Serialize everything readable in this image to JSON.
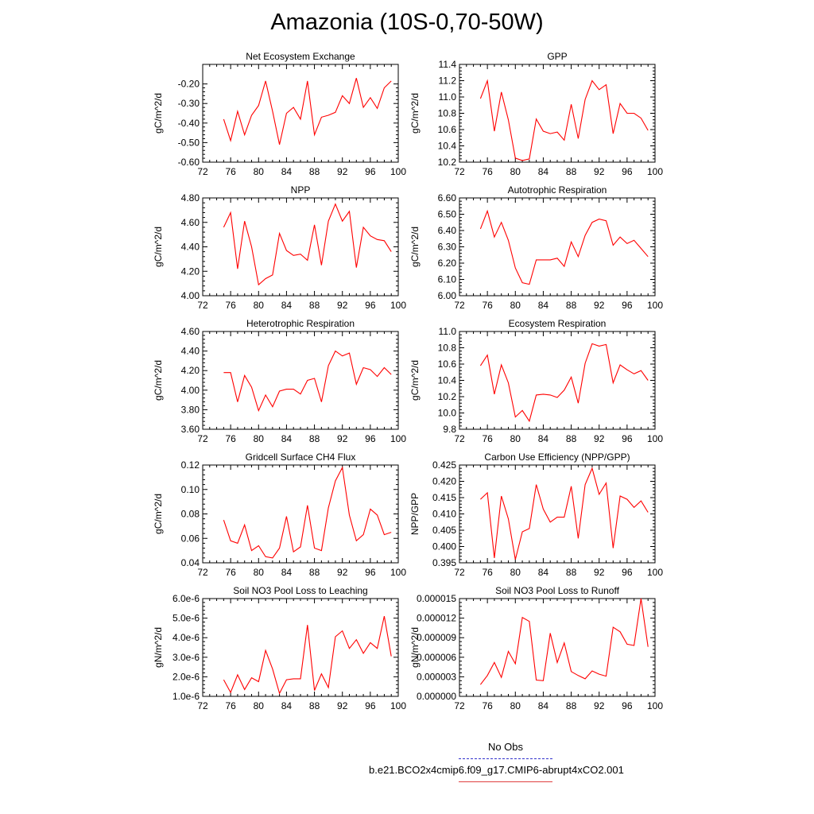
{
  "title": "Amazonia (10S-0,70-50W)",
  "legend": [
    {
      "name": "No Obs",
      "color": "#3333cc",
      "style": "dashed"
    },
    {
      "name": "b.e21.BCO2x4cmip6.f09_g17.CMIP6-abrupt4xCO2.001",
      "color": "#e04040",
      "style": "solid"
    }
  ],
  "chart_data": [
    {
      "type": "line",
      "title": "Net Ecosystem Exchange",
      "ylabel": "gC/m^2/d",
      "xlim": [
        72,
        100
      ],
      "xticks": [
        72,
        76,
        80,
        84,
        88,
        92,
        96,
        100
      ],
      "ylim": [
        -0.6,
        -0.1
      ],
      "yticks": [
        -0.6,
        -0.5,
        -0.4,
        -0.3,
        -0.2
      ],
      "ytick_labels": [
        "-0.60",
        "-0.50",
        "-0.40",
        "-0.30",
        "-0.20"
      ],
      "series": [
        {
          "color": "#ff0000",
          "x": [
            75,
            76,
            77,
            78,
            79,
            80,
            81,
            82,
            83,
            84,
            85,
            86,
            87,
            88,
            89,
            90,
            91,
            92,
            93,
            94,
            95,
            96,
            97,
            98,
            99
          ],
          "y": [
            -0.38,
            -0.49,
            -0.34,
            -0.46,
            -0.36,
            -0.31,
            -0.185,
            -0.34,
            -0.51,
            -0.35,
            -0.32,
            -0.38,
            -0.185,
            -0.46,
            -0.37,
            -0.36,
            -0.345,
            -0.26,
            -0.3,
            -0.17,
            -0.32,
            -0.27,
            -0.325,
            -0.22,
            -0.185
          ]
        }
      ]
    },
    {
      "type": "line",
      "title": "GPP",
      "ylabel": "gC/m^2/d",
      "xlim": [
        72,
        100
      ],
      "xticks": [
        72,
        76,
        80,
        84,
        88,
        92,
        96,
        100
      ],
      "ylim": [
        10.2,
        11.4
      ],
      "yticks": [
        10.2,
        10.4,
        10.6,
        10.8,
        11.0,
        11.2,
        11.4
      ],
      "ytick_labels": [
        "10.2",
        "10.4",
        "10.6",
        "10.8",
        "11.0",
        "11.2",
        "11.4"
      ],
      "series": [
        {
          "color": "#ff0000",
          "x": [
            75,
            76,
            77,
            78,
            79,
            80,
            81,
            82,
            83,
            84,
            85,
            86,
            87,
            88,
            89,
            90,
            91,
            92,
            93,
            94,
            95,
            96,
            97,
            98,
            99
          ],
          "y": [
            10.98,
            11.2,
            10.58,
            11.06,
            10.72,
            10.25,
            10.22,
            10.24,
            10.73,
            10.58,
            10.55,
            10.57,
            10.47,
            10.91,
            10.49,
            10.97,
            11.2,
            11.09,
            11.15,
            10.55,
            10.92,
            10.8,
            10.8,
            10.74,
            10.59
          ]
        }
      ]
    },
    {
      "type": "line",
      "title": "NPP",
      "ylabel": "gC/m^2/d",
      "xlim": [
        72,
        100
      ],
      "xticks": [
        72,
        76,
        80,
        84,
        88,
        92,
        96,
        100
      ],
      "ylim": [
        4.0,
        4.8
      ],
      "yticks": [
        4.0,
        4.2,
        4.4,
        4.6,
        4.8
      ],
      "ytick_labels": [
        "4.00",
        "4.20",
        "4.40",
        "4.60",
        "4.80"
      ],
      "series": [
        {
          "color": "#ff0000",
          "x": [
            75,
            76,
            77,
            78,
            79,
            80,
            81,
            82,
            83,
            84,
            85,
            86,
            87,
            88,
            89,
            90,
            91,
            92,
            93,
            94,
            95,
            96,
            97,
            98,
            99
          ],
          "y": [
            4.56,
            4.68,
            4.22,
            4.61,
            4.4,
            4.09,
            4.14,
            4.17,
            4.51,
            4.37,
            4.33,
            4.34,
            4.29,
            4.58,
            4.25,
            4.61,
            4.75,
            4.61,
            4.69,
            4.23,
            4.56,
            4.49,
            4.46,
            4.45,
            4.36
          ]
        }
      ]
    },
    {
      "type": "line",
      "title": "Autotrophic Respiration",
      "ylabel": "gC/m^2/d",
      "xlim": [
        72,
        100
      ],
      "xticks": [
        72,
        76,
        80,
        84,
        88,
        92,
        96,
        100
      ],
      "ylim": [
        6.0,
        6.6
      ],
      "yticks": [
        6.0,
        6.1,
        6.2,
        6.3,
        6.4,
        6.5,
        6.6
      ],
      "ytick_labels": [
        "6.00",
        "6.10",
        "6.20",
        "6.30",
        "6.40",
        "6.50",
        "6.60"
      ],
      "series": [
        {
          "color": "#ff0000",
          "x": [
            75,
            76,
            77,
            78,
            79,
            80,
            81,
            82,
            83,
            84,
            85,
            86,
            87,
            88,
            89,
            90,
            91,
            92,
            93,
            94,
            95,
            96,
            97,
            98,
            99
          ],
          "y": [
            6.41,
            6.52,
            6.36,
            6.45,
            6.34,
            6.17,
            6.08,
            6.07,
            6.22,
            6.22,
            6.22,
            6.23,
            6.18,
            6.33,
            6.24,
            6.37,
            6.45,
            6.47,
            6.46,
            6.31,
            6.36,
            6.32,
            6.34,
            6.29,
            6.24
          ]
        }
      ]
    },
    {
      "type": "line",
      "title": "Heterotrophic Respiration",
      "ylabel": "gC/m^2/d",
      "xlim": [
        72,
        100
      ],
      "xticks": [
        72,
        76,
        80,
        84,
        88,
        92,
        96,
        100
      ],
      "ylim": [
        3.6,
        4.6
      ],
      "yticks": [
        3.6,
        3.8,
        4.0,
        4.2,
        4.4,
        4.6
      ],
      "ytick_labels": [
        "3.60",
        "3.80",
        "4.00",
        "4.20",
        "4.40",
        "4.60"
      ],
      "series": [
        {
          "color": "#ff0000",
          "x": [
            75,
            76,
            77,
            78,
            79,
            80,
            81,
            82,
            83,
            84,
            85,
            86,
            87,
            88,
            89,
            90,
            91,
            92,
            93,
            94,
            95,
            96,
            97,
            98,
            99
          ],
          "y": [
            4.18,
            4.18,
            3.88,
            4.15,
            4.03,
            3.79,
            3.95,
            3.83,
            3.99,
            4.01,
            4.01,
            3.96,
            4.1,
            4.12,
            3.88,
            4.25,
            4.4,
            4.35,
            4.38,
            4.06,
            4.23,
            4.21,
            4.14,
            4.23,
            4.16
          ]
        }
      ]
    },
    {
      "type": "line",
      "title": "Ecosystem Respiration",
      "ylabel": "gC/m^2/d",
      "xlim": [
        72,
        100
      ],
      "xticks": [
        72,
        76,
        80,
        84,
        88,
        92,
        96,
        100
      ],
      "ylim": [
        9.8,
        11.0
      ],
      "yticks": [
        9.8,
        10.0,
        10.2,
        10.4,
        10.6,
        10.8,
        11.0
      ],
      "ytick_labels": [
        "9.8",
        "10.0",
        "10.2",
        "10.4",
        "10.6",
        "10.8",
        "11.0"
      ],
      "series": [
        {
          "color": "#ff0000",
          "x": [
            75,
            76,
            77,
            78,
            79,
            80,
            81,
            82,
            83,
            84,
            85,
            86,
            87,
            88,
            89,
            90,
            91,
            92,
            93,
            94,
            95,
            96,
            97,
            98,
            99
          ],
          "y": [
            10.58,
            10.71,
            10.23,
            10.59,
            10.37,
            9.95,
            10.03,
            9.9,
            10.22,
            10.23,
            10.22,
            10.19,
            10.28,
            10.44,
            10.12,
            10.61,
            10.85,
            10.82,
            10.84,
            10.37,
            10.59,
            10.53,
            10.48,
            10.52,
            10.4
          ]
        }
      ]
    },
    {
      "type": "line",
      "title": "Gridcell Surface CH4 Flux",
      "ylabel": "gC/m^2/d",
      "xlim": [
        72,
        100
      ],
      "xticks": [
        72,
        76,
        80,
        84,
        88,
        92,
        96,
        100
      ],
      "ylim": [
        0.04,
        0.12
      ],
      "yticks": [
        0.04,
        0.06,
        0.08,
        0.1,
        0.12
      ],
      "ytick_labels": [
        "0.04",
        "0.06",
        "0.08",
        "0.10",
        "0.12"
      ],
      "series": [
        {
          "color": "#ff0000",
          "x": [
            75,
            76,
            77,
            78,
            79,
            80,
            81,
            82,
            83,
            84,
            85,
            86,
            87,
            88,
            89,
            90,
            91,
            92,
            93,
            94,
            95,
            96,
            97,
            98,
            99
          ],
          "y": [
            0.075,
            0.058,
            0.056,
            0.071,
            0.05,
            0.054,
            0.045,
            0.044,
            0.052,
            0.078,
            0.049,
            0.053,
            0.087,
            0.052,
            0.05,
            0.085,
            0.107,
            0.118,
            0.079,
            0.058,
            0.063,
            0.084,
            0.079,
            0.063,
            0.065
          ]
        }
      ]
    },
    {
      "type": "line",
      "title": "Carbon Use Efficiency (NPP/GPP)",
      "ylabel": "NPP/GPP",
      "xlim": [
        72,
        100
      ],
      "xticks": [
        72,
        76,
        80,
        84,
        88,
        92,
        96,
        100
      ],
      "ylim": [
        0.395,
        0.425
      ],
      "yticks": [
        0.395,
        0.4,
        0.405,
        0.41,
        0.415,
        0.42,
        0.425
      ],
      "ytick_labels": [
        "0.395",
        "0.400",
        "0.405",
        "0.410",
        "0.415",
        "0.420",
        "0.425"
      ],
      "series": [
        {
          "color": "#ff0000",
          "x": [
            75,
            76,
            77,
            78,
            79,
            80,
            81,
            82,
            83,
            84,
            85,
            86,
            87,
            88,
            89,
            90,
            91,
            92,
            93,
            94,
            95,
            96,
            97,
            98,
            99
          ],
          "y": [
            0.4145,
            0.4165,
            0.3965,
            0.4155,
            0.4085,
            0.396,
            0.4045,
            0.4055,
            0.419,
            0.4115,
            0.4075,
            0.409,
            0.409,
            0.4185,
            0.4025,
            0.419,
            0.424,
            0.416,
            0.4195,
            0.3995,
            0.4155,
            0.4145,
            0.412,
            0.414,
            0.4105
          ]
        }
      ]
    },
    {
      "type": "line",
      "title": "Soil NO3 Pool Loss to Leaching",
      "ylabel": "gN/m^2/d",
      "xlim": [
        72,
        100
      ],
      "xticks": [
        72,
        76,
        80,
        84,
        88,
        92,
        96,
        100
      ],
      "ylim": [
        1e-06,
        6e-06
      ],
      "yticks": [
        1e-06,
        2e-06,
        3e-06,
        4e-06,
        5e-06,
        6e-06
      ],
      "ytick_labels": [
        "1.0e-6",
        "2.0e-6",
        "3.0e-6",
        "4.0e-6",
        "5.0e-6",
        "6.0e-6"
      ],
      "series": [
        {
          "color": "#ff0000",
          "x": [
            75,
            76,
            77,
            78,
            79,
            80,
            81,
            82,
            83,
            84,
            85,
            86,
            87,
            88,
            89,
            90,
            91,
            92,
            93,
            94,
            95,
            96,
            97,
            98,
            99
          ],
          "y": [
            1.85e-06,
            1.2e-06,
            2.1e-06,
            1.35e-06,
            1.95e-06,
            1.75e-06,
            3.35e-06,
            2.4e-06,
            1.15e-06,
            1.85e-06,
            1.9e-06,
            1.9e-06,
            4.65e-06,
            1.3e-06,
            2.15e-06,
            1.45e-06,
            4.05e-06,
            4.35e-06,
            3.45e-06,
            3.9e-06,
            3.2e-06,
            3.75e-06,
            3.45e-06,
            5.1e-06,
            3.05e-06
          ]
        }
      ]
    },
    {
      "type": "line",
      "title": "Soil NO3 Pool Loss to Runoff",
      "ylabel": "gN/m^2/d",
      "xlim": [
        72,
        100
      ],
      "xticks": [
        72,
        76,
        80,
        84,
        88,
        92,
        96,
        100
      ],
      "ylim": [
        0.0,
        1.5e-05
      ],
      "yticks": [
        0.0,
        3e-06,
        6e-06,
        9e-06,
        1.2e-05,
        1.5e-05
      ],
      "ytick_labels": [
        "0.000000",
        "0.000003",
        "0.000006",
        "0.000009",
        "0.000012",
        "0.000015"
      ],
      "series": [
        {
          "color": "#ff0000",
          "x": [
            75,
            76,
            77,
            78,
            79,
            80,
            81,
            82,
            83,
            84,
            85,
            86,
            87,
            88,
            89,
            90,
            91,
            92,
            93,
            94,
            95,
            96,
            97,
            98,
            99
          ],
          "y": [
            1.8e-06,
            3.2e-06,
            5.2e-06,
            2.9e-06,
            6.9e-06,
            5e-06,
            1.21e-05,
            1.15e-05,
            2.5e-06,
            2.4e-06,
            9.7e-06,
            5.2e-06,
            8.2e-06,
            3.8e-06,
            3.2e-06,
            2.7e-06,
            3.9e-06,
            3.4e-06,
            3.1e-06,
            1.06e-05,
            9.9e-06,
            8e-06,
            7.8e-06,
            1.5e-05,
            7.6e-06
          ]
        }
      ]
    }
  ]
}
